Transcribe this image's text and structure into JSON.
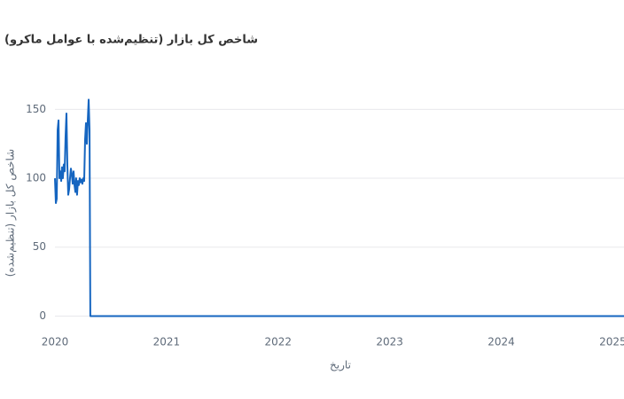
{
  "chart_data": {
    "type": "line",
    "title": "شاخص کل بازار (تنظیم‌شده با عوامل ماکرو)",
    "x_label": "تاریخ",
    "y_label": "شاخص کل بازار (تنظیم‌شده)",
    "x": [
      2020,
      2020.008,
      2020.016,
      2020.024,
      2020.032,
      2020.04,
      2020.048,
      2020.056,
      2020.063,
      2020.071,
      2020.079,
      2020.087,
      2020.095,
      2020.103,
      2020.111,
      2020.119,
      2020.127,
      2020.135,
      2020.143,
      2020.151,
      2020.159,
      2020.167,
      2020.175,
      2020.183,
      2020.19,
      2020.198,
      2020.206,
      2020.214,
      2020.222,
      2020.23,
      2020.238,
      2020.246,
      2020.254,
      2020.262,
      2020.27,
      2020.278,
      2020.286,
      2020.294,
      2020.302,
      2020.31,
      2020.317,
      2025.1
    ],
    "series": [
      {
        "color": "#1565c0",
        "values": [
          100,
          82,
          85,
          135,
          142,
          100,
          105,
          98,
          108,
          100,
          110,
          105,
          130,
          147,
          110,
          88,
          92,
          100,
          107,
          103,
          96,
          105,
          95,
          90,
          100,
          88,
          98,
          95,
          100,
          97,
          99,
          96,
          100,
          98,
          128,
          140,
          125,
          142,
          157,
          135,
          0,
          0
        ]
      }
    ],
    "xlim": [
      2020,
      2025.1
    ],
    "xticks": [
      2020,
      2021,
      2022,
      2023,
      2024,
      2025
    ],
    "ylim": [
      -10,
      165
    ],
    "yticks": [
      0,
      50,
      100,
      150
    ],
    "grid": true
  }
}
